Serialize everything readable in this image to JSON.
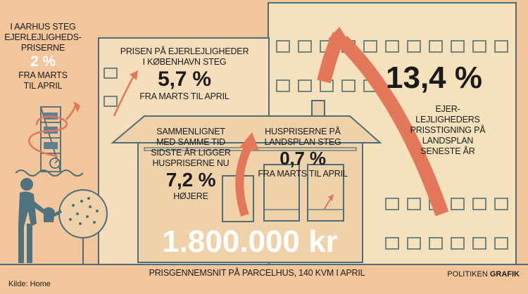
{
  "aarhus": {
    "line1": "I AARHUS STEG",
    "line2": "EJERLEJLIGHEDS-",
    "line3": "PRISERNE",
    "value": "2 %",
    "line4": "FRA MARTS",
    "line5": "TIL APRIL"
  },
  "copenhagen": {
    "line1": "PRISEN PÅ EJERLEJLIGHEDER",
    "line2": "I KØBENHAVN STEG",
    "value": "5,7 %",
    "line3": "FRA MARTS TIL APRIL"
  },
  "national_apartments": {
    "value": "13,4 %",
    "line1": "EJER-",
    "line2": "LEJLIGHEDERS",
    "line3": "PRISSTIGNING PÅ",
    "line4": "LANDSPLAN",
    "line5": "SENESTE ÅR"
  },
  "comparison": {
    "line1": "SAMMENLIGNET",
    "line2": "MED SAMME TID",
    "line3": "SIDSTE ÅR LIGGER",
    "line4": "HUSPRISERNE NU",
    "value": "7,2 %",
    "line5": "HØJERE"
  },
  "national_houses": {
    "line1": "HUSPRISERNE PÅ",
    "line2": "LANDSPLAN STEG",
    "value": "0,7 %",
    "line3": "FRA MARTS TIL APRIL"
  },
  "average_price": {
    "value": "1.800.000 kr",
    "caption": "PRISGENNEMSNIT PÅ PARCELHUS, 140 KVM I APRIL"
  },
  "source": "Kilde: Home",
  "brand": {
    "name": "POLITIKEN",
    "section": "GRAFIK"
  },
  "colors": {
    "background": "#f3c59a",
    "building_light": "#f5e2bd",
    "building_mid": "#f6ddbb",
    "house": "#efd2a9",
    "arrow": "#e2775a",
    "line": "#4d6e79",
    "person": "#4f7281"
  }
}
